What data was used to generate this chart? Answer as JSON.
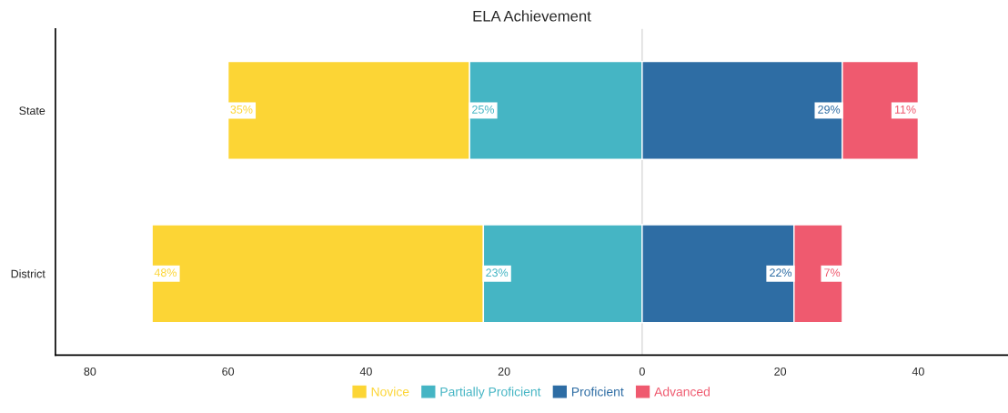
{
  "chart_data": {
    "type": "bar",
    "orientation": "horizontal",
    "title": "ELA Achievement",
    "categories": [
      "State",
      "District"
    ],
    "series": [
      {
        "name": "Novice",
        "color": "#fcd535",
        "base": [
          -60,
          -71
        ],
        "values": [
          35,
          48
        ],
        "value_labels": [
          "35%",
          "48%"
        ]
      },
      {
        "name": "Partially Proficient",
        "color": "#45b5c4",
        "base": [
          -25,
          -23
        ],
        "values": [
          25,
          23
        ],
        "value_labels": [
          "25%",
          "23%"
        ]
      },
      {
        "name": "Proficient",
        "color": "#2e6da4",
        "base": [
          0,
          0
        ],
        "values": [
          29,
          22
        ],
        "value_labels": [
          "29%",
          "22%"
        ]
      },
      {
        "name": "Advanced",
        "color": "#ef5a6f",
        "base": [
          29,
          22
        ],
        "values": [
          11,
          7
        ],
        "value_labels": [
          "11%",
          "7%"
        ]
      }
    ],
    "xlim": [
      -85,
      53
    ],
    "xticks": [
      {
        "value": -80,
        "label": "80"
      },
      {
        "value": -60,
        "label": "60"
      },
      {
        "value": -40,
        "label": "40"
      },
      {
        "value": -20,
        "label": "20"
      },
      0,
      20,
      40
    ],
    "ref_lines": [
      {
        "axis": "x",
        "value": 0,
        "color": "#d9d9d9"
      }
    ],
    "grid": false,
    "legend": "bottom"
  }
}
